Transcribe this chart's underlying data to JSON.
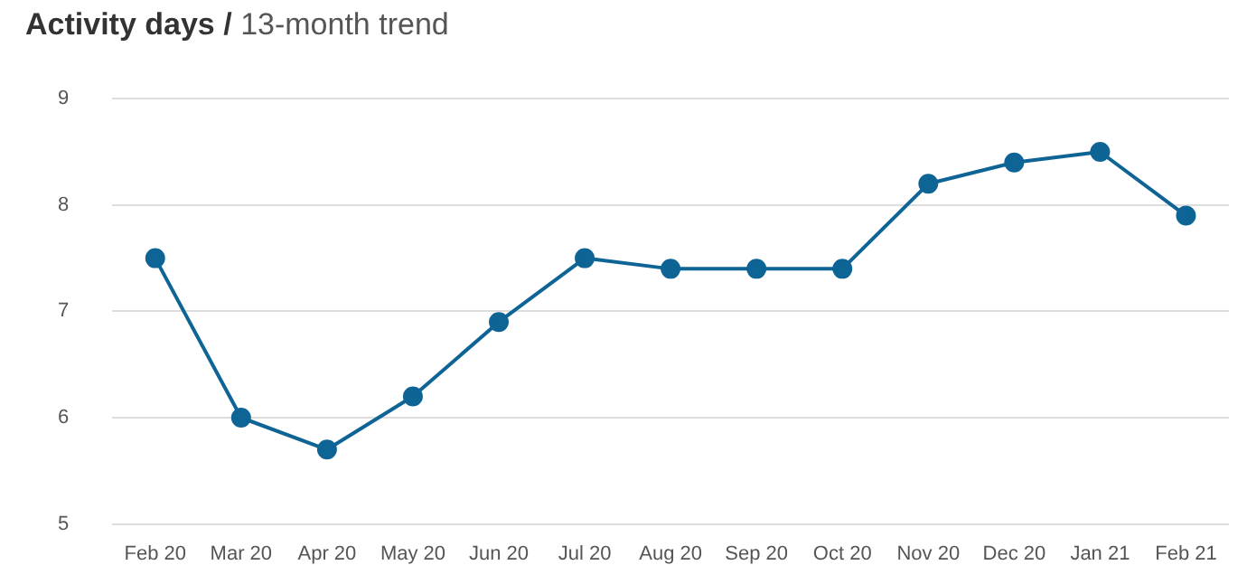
{
  "chart_data": {
    "type": "line",
    "title": "Activity days /",
    "subtitle": "13-month trend",
    "categories": [
      "Feb 20",
      "Mar 20",
      "Apr 20",
      "May 20",
      "Jun 20",
      "Jul 20",
      "Aug 20",
      "Sep 20",
      "Oct 20",
      "Nov 20",
      "Dec 20",
      "Jan 21",
      "Feb 21"
    ],
    "series": [
      {
        "color": "#0f6496",
        "values": [
          7.5,
          6.0,
          5.7,
          6.2,
          6.9,
          7.5,
          7.4,
          7.4,
          7.4,
          8.2,
          8.4,
          8.5,
          7.9
        ]
      }
    ],
    "ylim": [
      5,
      9
    ],
    "yticks": [
      5,
      6,
      7,
      8,
      9
    ],
    "grid": "y",
    "legend": false,
    "marker": "circle",
    "line_style": "solid"
  }
}
